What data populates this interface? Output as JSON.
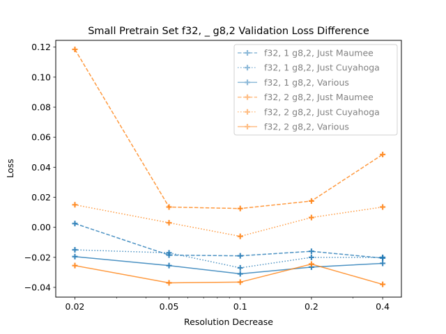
{
  "chart_data": {
    "type": "line",
    "title": "Small Pretrain Set f32, _ g8,2 Validation Loss Difference",
    "xlabel": "Resolution Decrease",
    "ylabel": "Loss",
    "xscale": "log",
    "x": [
      0.02,
      0.05,
      0.1,
      0.2,
      0.4
    ],
    "xticks": [
      "0.02",
      "0.05",
      "0.1",
      "0.2",
      "0.4"
    ],
    "xlim": [
      0.0166,
      0.48
    ],
    "ylim": [
      -0.0465,
      0.1245
    ],
    "yticks": [
      "−0.04",
      "−0.02",
      "0.00",
      "0.02",
      "0.04",
      "0.06",
      "0.08",
      "0.10",
      "0.12"
    ],
    "ytick_values": [
      -0.04,
      -0.02,
      0.0,
      0.02,
      0.04,
      0.06,
      0.08,
      0.1,
      0.12
    ],
    "grid": false,
    "legend_position": "top-right",
    "series": [
      {
        "name": "f32, 1 g8,2, Just Maumee",
        "color": "#1f77b4",
        "dash": "dashed",
        "values": [
          0.0025,
          -0.0185,
          -0.019,
          -0.016,
          -0.0205
        ]
      },
      {
        "name": "f32, 1 g8,2, Just Cuyahoga",
        "color": "#1f77b4",
        "dash": "dotted",
        "values": [
          -0.015,
          -0.017,
          -0.027,
          -0.02,
          -0.02
        ]
      },
      {
        "name": "f32, 1 g8,2, Various",
        "color": "#1f77b4",
        "dash": "solid",
        "values": [
          -0.0195,
          -0.0255,
          -0.031,
          -0.0265,
          -0.024
        ]
      },
      {
        "name": "f32, 2 g8,2, Just Maumee",
        "color": "#ff7f0e",
        "dash": "dashed",
        "values": [
          0.1185,
          0.0135,
          0.0125,
          0.0175,
          0.0485
        ]
      },
      {
        "name": "f32, 2 g8,2, Just Cuyahoga",
        "color": "#ff7f0e",
        "dash": "dotted",
        "values": [
          0.015,
          0.003,
          -0.006,
          0.0065,
          0.0135
        ]
      },
      {
        "name": "f32, 2 g8,2, Various",
        "color": "#ff7f0e",
        "dash": "solid",
        "values": [
          -0.0255,
          -0.037,
          -0.0365,
          -0.0245,
          -0.038
        ]
      }
    ]
  }
}
